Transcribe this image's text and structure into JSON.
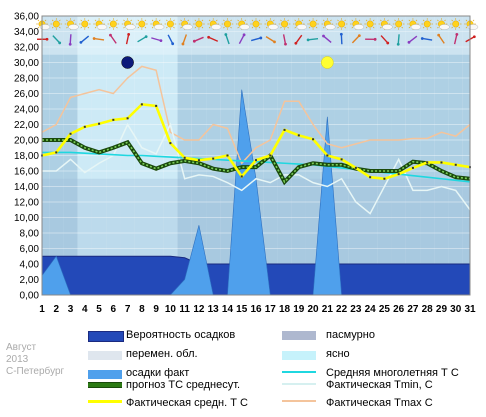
{
  "meta": {
    "month": "Август",
    "year": "2013",
    "city": "С-Петербург"
  },
  "legend": [
    {
      "key": "prob",
      "label": "Вероятность осадков",
      "color": "#2349b8"
    },
    {
      "key": "overcast",
      "label": "пасмурно",
      "color": "#aeb8cf"
    },
    {
      "key": "partly",
      "label": "перемен. обл.",
      "color": "#dfe6ee"
    },
    {
      "key": "clear",
      "label": "ясно",
      "color": "#c6f2fb"
    },
    {
      "key": "precip",
      "label": "осадки факт",
      "color": "#4fa0ec"
    },
    {
      "key": "norm",
      "label": "Средняя многолетняя Т С",
      "color": "#1fd7e0"
    },
    {
      "key": "forecast",
      "label": "прогноз ТС среднесут.",
      "color": "#2c7a14"
    },
    {
      "key": "tmin",
      "label": "Фактическая Tmin, C",
      "color": "#e7f6f6"
    },
    {
      "key": "tavg",
      "label": "Фактическая средн. Т С",
      "color": "#ffff00"
    },
    {
      "key": "tmax",
      "label": "Фактическая Tmax C",
      "color": "#f4c49c"
    }
  ],
  "chart_data": {
    "type": "line",
    "x": [
      1,
      2,
      3,
      4,
      5,
      6,
      7,
      8,
      9,
      10,
      11,
      12,
      13,
      14,
      15,
      16,
      17,
      18,
      19,
      20,
      21,
      22,
      23,
      24,
      25,
      26,
      27,
      28,
      29,
      30,
      31
    ],
    "ylim": [
      0,
      36
    ],
    "yticks": [
      "0,00",
      "2,00",
      "4,00",
      "6,00",
      "8,00",
      "10,00",
      "12,00",
      "14,00",
      "16,00",
      "18,00",
      "20,00",
      "22,00",
      "24,00",
      "26,00",
      "28,00",
      "30,00",
      "32,00",
      "34,00",
      "36,00"
    ],
    "sky": [
      "overcast",
      "overcast",
      "overcast",
      "partly",
      "partly",
      "partly",
      "partly",
      "partly",
      "partly",
      "partly",
      "overcast",
      "overcast",
      "overcast",
      "overcast",
      "overcast",
      "overcast",
      "overcast",
      "overcast",
      "overcast",
      "overcast",
      "overcast",
      "overcast",
      "overcast",
      "overcast",
      "overcast",
      "overcast",
      "overcast",
      "overcast",
      "overcast",
      "overcast",
      "overcast"
    ],
    "series": [
      {
        "key": "prob",
        "values": [
          5,
          5,
          5,
          5,
          5,
          5,
          5,
          5,
          5,
          5,
          4.8,
          4,
          4,
          4,
          4,
          4,
          4,
          4,
          4,
          4,
          4,
          4,
          4,
          4,
          4,
          4,
          4,
          4,
          4,
          4,
          4
        ]
      },
      {
        "key": "precip",
        "values": [
          2.5,
          5,
          0,
          0,
          0,
          0,
          0,
          0,
          0,
          0,
          2,
          9,
          0,
          0,
          26.5,
          15,
          0,
          0,
          0,
          0,
          23,
          0,
          0,
          0,
          0,
          0,
          0,
          0,
          0,
          0,
          0
        ]
      },
      {
        "key": "norm",
        "values": [
          18.4,
          18.4,
          18.4,
          18.3,
          18.2,
          18.1,
          18,
          18,
          17.9,
          17.8,
          17.7,
          17.6,
          17.5,
          17.4,
          17.3,
          17.2,
          17.1,
          17,
          16.9,
          16.8,
          16.6,
          16.4,
          16.2,
          16,
          15.8,
          15.6,
          15.4,
          15.2,
          15,
          14.8,
          14.6
        ]
      },
      {
        "key": "forecast",
        "values": [
          20,
          20,
          20,
          19,
          18.4,
          19,
          19.7,
          17,
          16.3,
          17,
          17.3,
          17,
          16.3,
          16,
          16.5,
          16.5,
          18,
          14.6,
          16.5,
          17,
          16.8,
          16.8,
          16.3,
          16,
          16,
          16,
          17.2,
          17,
          16,
          15.2,
          15
        ]
      },
      {
        "key": "tmin",
        "values": [
          16,
          16,
          17.5,
          15.8,
          17,
          18,
          22,
          19,
          18.2,
          22,
          15,
          15.5,
          15.3,
          14.5,
          13.5,
          15,
          14.5,
          15.5,
          15.5,
          14.5,
          14,
          15,
          12,
          10.5,
          14,
          17.5,
          13.5,
          13.5,
          14,
          13.5,
          11
        ]
      },
      {
        "key": "tavg",
        "values": [
          18,
          18.4,
          20.8,
          21.7,
          22.1,
          22.6,
          22.8,
          24.6,
          24.4,
          19.6,
          17.7,
          17.4,
          17.6,
          18,
          15.3,
          17.4,
          18,
          21.3,
          20.6,
          20.1,
          18,
          17.5,
          16.4,
          15.2,
          15,
          15.6,
          16.4,
          17.1,
          17.1,
          16.8,
          16.5
        ]
      },
      {
        "key": "tmax",
        "values": [
          21,
          22,
          25.5,
          26,
          26.5,
          26,
          28,
          29.5,
          29,
          21,
          20,
          20,
          22,
          21.5,
          17,
          19,
          20,
          25,
          25,
          22,
          19.5,
          19,
          19.5,
          20,
          20,
          20,
          20.2,
          20.2,
          21,
          20.5,
          22
        ]
      }
    ],
    "markers": [
      {
        "type": "new-moon",
        "day": 7
      },
      {
        "type": "full-moon",
        "day": 21
      }
    ]
  }
}
